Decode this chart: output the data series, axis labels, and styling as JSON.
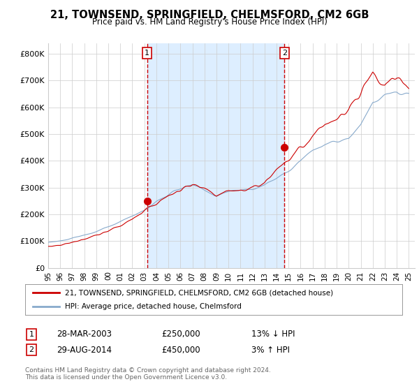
{
  "title": "21, TOWNSEND, SPRINGFIELD, CHELMSFORD, CM2 6GB",
  "subtitle": "Price paid vs. HM Land Registry's House Price Index (HPI)",
  "ylabel_ticks": [
    "£0",
    "£100K",
    "£200K",
    "£300K",
    "£400K",
    "£500K",
    "£600K",
    "£700K",
    "£800K"
  ],
  "ytick_values": [
    0,
    100000,
    200000,
    300000,
    400000,
    500000,
    600000,
    700000,
    800000
  ],
  "ylim": [
    0,
    840000
  ],
  "xlim_start": 1995.0,
  "xlim_end": 2025.5,
  "legend_line1": "21, TOWNSEND, SPRINGFIELD, CHELMSFORD, CM2 6GB (detached house)",
  "legend_line2": "HPI: Average price, detached house, Chelmsford",
  "sale1_year": 2003.23,
  "sale1_label": "1",
  "sale1_price": 250000,
  "sale1_date": "28-MAR-2003",
  "sale1_hpi_pct": "13% ↓ HPI",
  "sale2_year": 2014.66,
  "sale2_label": "2",
  "sale2_price": 450000,
  "sale2_date": "29-AUG-2014",
  "sale2_hpi_pct": "3% ↑ HPI",
  "footer1": "Contains HM Land Registry data © Crown copyright and database right 2024.",
  "footer2": "This data is licensed under the Open Government Licence v3.0.",
  "line_color_red": "#cc0000",
  "line_color_blue": "#88aacc",
  "shade_color": "#ddeeff",
  "marker_color_red": "#cc0000",
  "vline_color": "#cc0000",
  "box_color": "#cc0000",
  "grid_color": "#cccccc",
  "background_color": "#ffffff",
  "xtick_years": [
    1995,
    1996,
    1997,
    1998,
    1999,
    2000,
    2001,
    2002,
    2003,
    2004,
    2005,
    2006,
    2007,
    2008,
    2009,
    2010,
    2011,
    2012,
    2013,
    2014,
    2015,
    2016,
    2017,
    2018,
    2019,
    2020,
    2021,
    2022,
    2023,
    2024,
    2025
  ]
}
